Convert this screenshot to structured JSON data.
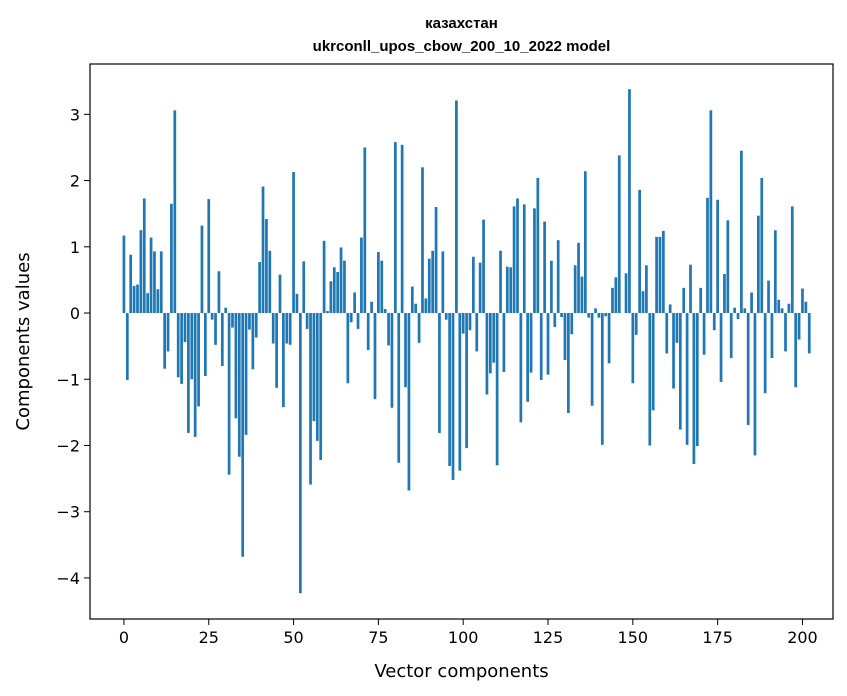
{
  "chart_data": {
    "type": "bar",
    "title": "казахстан",
    "subtitle": "ukrconll_upos_cbow_200_10_2022 model",
    "xlabel": "Vector components",
    "ylabel": "Components values",
    "xlim": [
      -10,
      209
    ],
    "ylim": [
      -4.62,
      3.76
    ],
    "xticks": [
      0,
      25,
      50,
      75,
      100,
      125,
      150,
      175,
      200
    ],
    "yticks": [
      3,
      2,
      1,
      0,
      -1,
      -2,
      -3,
      -4
    ],
    "ytick_labels": [
      "3",
      "2",
      "1",
      "0",
      "−1",
      "−2",
      "−3",
      "−4"
    ],
    "bar_color": "#1f77b4",
    "grid": false,
    "values": [
      1.17,
      -1.01,
      0.88,
      0.41,
      0.43,
      1.25,
      1.73,
      0.3,
      1.14,
      0.93,
      0.36,
      0.93,
      -0.84,
      -0.58,
      1.65,
      3.06,
      -0.97,
      -1.07,
      -0.44,
      -1.81,
      -1.0,
      -1.87,
      -1.41,
      1.32,
      -0.95,
      1.72,
      -0.1,
      -0.48,
      0.63,
      -0.8,
      0.08,
      -2.44,
      -0.22,
      -1.59,
      -2.17,
      -3.68,
      -1.84,
      -0.25,
      -0.85,
      -0.37,
      0.77,
      1.91,
      1.42,
      0.94,
      -0.46,
      -1.13,
      0.58,
      -1.42,
      -0.46,
      -0.48,
      2.13,
      0.29,
      -4.23,
      0.78,
      -0.24,
      -2.59,
      -1.63,
      -1.93,
      -2.22,
      1.09,
      0.03,
      0.48,
      0.69,
      0.62,
      0.99,
      0.79,
      -1.06,
      -0.14,
      0.31,
      -0.24,
      1.14,
      2.5,
      -0.56,
      0.17,
      -1.3,
      0.92,
      0.79,
      0.06,
      -0.49,
      -1.43,
      2.58,
      -2.26,
      2.54,
      -1.12,
      -2.68,
      0.4,
      0.14,
      -0.45,
      2.2,
      0.22,
      0.82,
      0.94,
      1.6,
      -1.81,
      0.93,
      -0.1,
      -2.31,
      -2.52,
      3.21,
      -2.38,
      -0.31,
      -2.04,
      -0.26,
      0.85,
      -0.58,
      0.76,
      1.41,
      -1.23,
      -0.91,
      -0.75,
      -2.3,
      0.94,
      -0.89,
      0.7,
      0.69,
      1.61,
      1.73,
      -1.65,
      1.64,
      -1.34,
      -0.9,
      1.58,
      2.04,
      -1.01,
      1.38,
      -0.93,
      0.79,
      -0.21,
      1.1,
      -0.06,
      -0.71,
      -1.51,
      -0.32,
      0.72,
      1.06,
      0.55,
      2.14,
      -0.07,
      -1.4,
      0.07,
      -0.07,
      -1.99,
      -0.05,
      -0.76,
      0.38,
      0.54,
      2.38,
      0.0,
      0.6,
      3.38,
      -1.06,
      -0.33,
      1.86,
      0.33,
      0.72,
      -2.0,
      -1.47,
      1.15,
      1.15,
      1.24,
      -0.61,
      0.13,
      -1.14,
      -0.45,
      -1.76,
      0.38,
      -1.99,
      0.73,
      -2.28,
      -2.01,
      0.38,
      -0.63,
      1.74,
      3.06,
      -0.26,
      1.71,
      -1.04,
      0.59,
      1.4,
      -0.68,
      0.08,
      -0.09,
      2.45,
      0.07,
      -1.69,
      0.31,
      -2.15,
      1.47,
      2.04,
      -1.21,
      0.49,
      -0.68,
      1.25,
      0.2,
      0.07,
      -0.58,
      0.14,
      1.61,
      -1.12,
      -0.4,
      0.37,
      0.17,
      -0.61
    ]
  }
}
